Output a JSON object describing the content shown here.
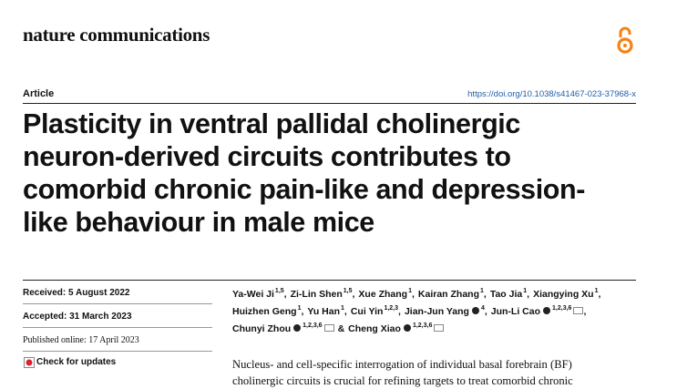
{
  "header": {
    "journal": "nature communications"
  },
  "article": {
    "type": "Article",
    "doi": "https://doi.org/10.1038/s41467-023-37968-x",
    "title_lines": [
      "Plasticity in ventral pallidal cholinergic",
      "neuron-derived circuits contributes to",
      "comorbid chronic pain-like and depression-",
      "like behaviour in male mice"
    ]
  },
  "dates": {
    "received": "Received: 5 August 2022",
    "accepted": "Accepted: 31 March 2023",
    "published": "Published online: 17 April 2023",
    "check": "Check for updates"
  },
  "authors": [
    [
      {
        "name": "Ya-Wei Ji",
        "sup": "1,5",
        "after": ","
      },
      {
        "name": "Zi-Lin Shen",
        "sup": "1,5",
        "after": ","
      },
      {
        "name": "Xue Zhang",
        "sup": "1",
        "after": ","
      },
      {
        "name": "Kairan Zhang",
        "sup": "1",
        "after": ","
      },
      {
        "name": "Tao Jia",
        "sup": "1",
        "after": ","
      },
      {
        "name": "Xiangying Xu",
        "sup": "1",
        "after": ","
      }
    ],
    [
      {
        "name": "Huizhen Geng",
        "sup": "1",
        "after": ","
      },
      {
        "name": "Yu Han",
        "sup": "1",
        "after": ","
      },
      {
        "name": "Cui Yin",
        "sup": "1,2,3",
        "after": ","
      },
      {
        "name": "Jian-Jun Yang",
        "orcid": true,
        "sup": "4",
        "after": ","
      },
      {
        "name": "Jun-Li Cao",
        "orcid": true,
        "sup": "1,2,3,6",
        "corresponding": true,
        "after": ","
      }
    ],
    [
      {
        "name": "Chunyi Zhou",
        "orcid": true,
        "sup": "1,2,3,6",
        "corresponding": true
      },
      {
        "prefix": "&",
        "name": "Cheng Xiao",
        "orcid": true,
        "sup": "1,2,3,6",
        "corresponding": true
      }
    ]
  ],
  "abstract": [
    "Nucleus- and cell-specific interrogation of individual basal forebrain (BF)",
    "cholinergic circuits is crucial for refining targets to treat comorbid chronic"
  ]
}
